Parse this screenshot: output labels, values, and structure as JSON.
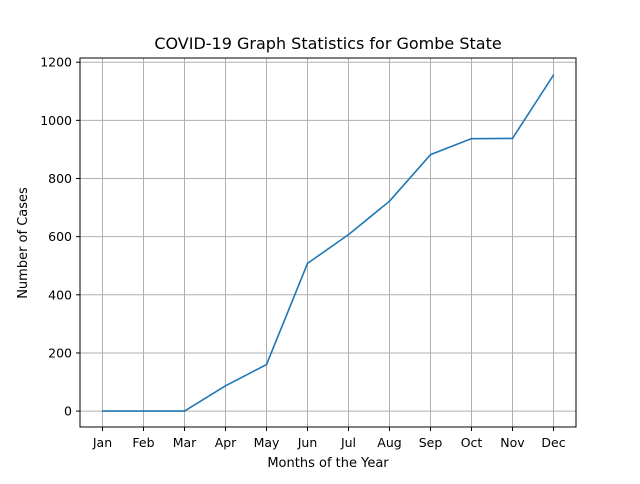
{
  "chart_data": {
    "type": "line",
    "title": "COVID-19 Graph Statistics for Gombe State",
    "xlabel": "Months of the Year",
    "ylabel": "Number of Cases",
    "categories": [
      "Jan",
      "Feb",
      "Mar",
      "Apr",
      "May",
      "Jun",
      "Jul",
      "Aug",
      "Sep",
      "Oct",
      "Nov",
      "Dec"
    ],
    "series": [
      {
        "values": [
          0,
          0,
          0,
          87,
          160,
          508,
          607,
          722,
          882,
          937,
          938,
          1156
        ]
      }
    ],
    "yticks": [
      0,
      200,
      400,
      600,
      800,
      1000,
      1200
    ],
    "ylim": [
      -54.7,
      1214.5
    ],
    "grid": true,
    "colors": {
      "line": "#1f77b4",
      "grid": "#b0b0b0",
      "axes": "#000000"
    }
  }
}
